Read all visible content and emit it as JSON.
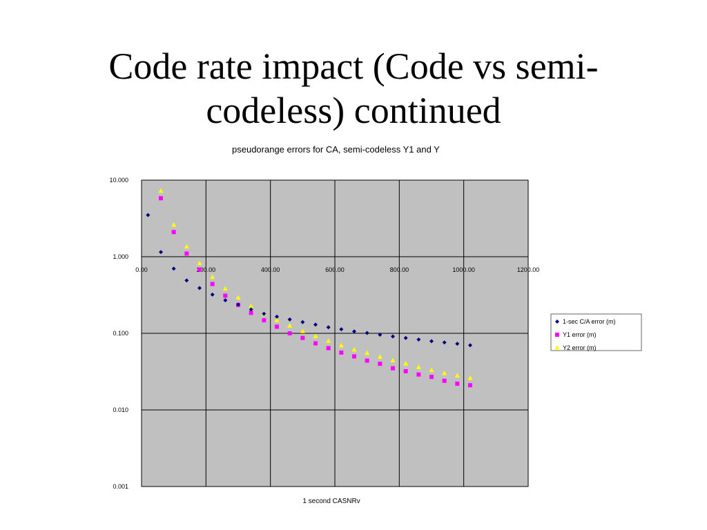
{
  "slide": {
    "title_line1": "Code rate impact (Code vs semi-",
    "title_line2": "codeless) continued"
  },
  "colors": {
    "plot_bg": "#c0c0c0",
    "series": [
      "#000080",
      "#ff00ff",
      "#ffff00"
    ]
  },
  "chart_data": {
    "type": "scatter",
    "title": "pseudorange errors for CA, semi-codeless Y1 and Y",
    "xlabel": "1 second CASNRv",
    "ylabel": "",
    "x_scale": "linear",
    "y_scale": "log",
    "xlim": [
      0,
      1200
    ],
    "ylim": [
      0.001,
      10
    ],
    "x_ticks": [
      "0.00",
      "200.00",
      "400.00",
      "600.00",
      "800.00",
      "1000.00",
      "1200.00"
    ],
    "y_ticks": [
      "10.000",
      "1.000",
      "0.100",
      "0.010",
      "0.001"
    ],
    "grid": true,
    "legend": "right",
    "series": [
      {
        "name": "1-sec C/A error (m)",
        "marker": "diamond",
        "x": [
          20,
          60,
          100,
          140,
          180,
          220,
          260,
          300,
          340,
          380,
          420,
          460,
          500,
          540,
          580,
          620,
          660,
          700,
          740,
          780,
          820,
          860,
          900,
          940,
          980,
          1020
        ],
        "y": [
          3.5,
          1.15,
          0.7,
          0.49,
          0.39,
          0.32,
          0.27,
          0.237,
          0.205,
          0.18,
          0.165,
          0.152,
          0.14,
          0.13,
          0.12,
          0.113,
          0.106,
          0.101,
          0.096,
          0.091,
          0.087,
          0.083,
          0.079,
          0.076,
          0.073,
          0.07
        ]
      },
      {
        "name": "Y1 error (m)",
        "marker": "square",
        "x": [
          60,
          100,
          140,
          180,
          220,
          260,
          300,
          340,
          380,
          420,
          460,
          500,
          540,
          580,
          620,
          660,
          700,
          740,
          780,
          820,
          860,
          900,
          940,
          980,
          1020
        ],
        "y": [
          5.8,
          2.1,
          1.1,
          0.68,
          0.44,
          0.31,
          0.235,
          0.185,
          0.148,
          0.122,
          0.1,
          0.087,
          0.074,
          0.064,
          0.056,
          0.05,
          0.044,
          0.04,
          0.035,
          0.032,
          0.029,
          0.027,
          0.024,
          0.022,
          0.021
        ]
      },
      {
        "name": "Y2 error (m)",
        "marker": "triangle",
        "x": [
          60,
          100,
          140,
          180,
          220,
          260,
          300,
          340,
          380,
          420,
          460,
          500,
          540,
          580,
          620,
          660,
          700,
          740,
          780,
          820,
          860,
          900,
          940,
          980,
          1020
        ],
        "y": [
          7.2,
          2.6,
          1.35,
          0.82,
          0.54,
          0.38,
          0.29,
          0.225,
          0.18,
          0.148,
          0.125,
          0.106,
          0.091,
          0.079,
          0.069,
          0.061,
          0.055,
          0.049,
          0.044,
          0.04,
          0.036,
          0.033,
          0.03,
          0.028,
          0.026
        ]
      }
    ]
  }
}
